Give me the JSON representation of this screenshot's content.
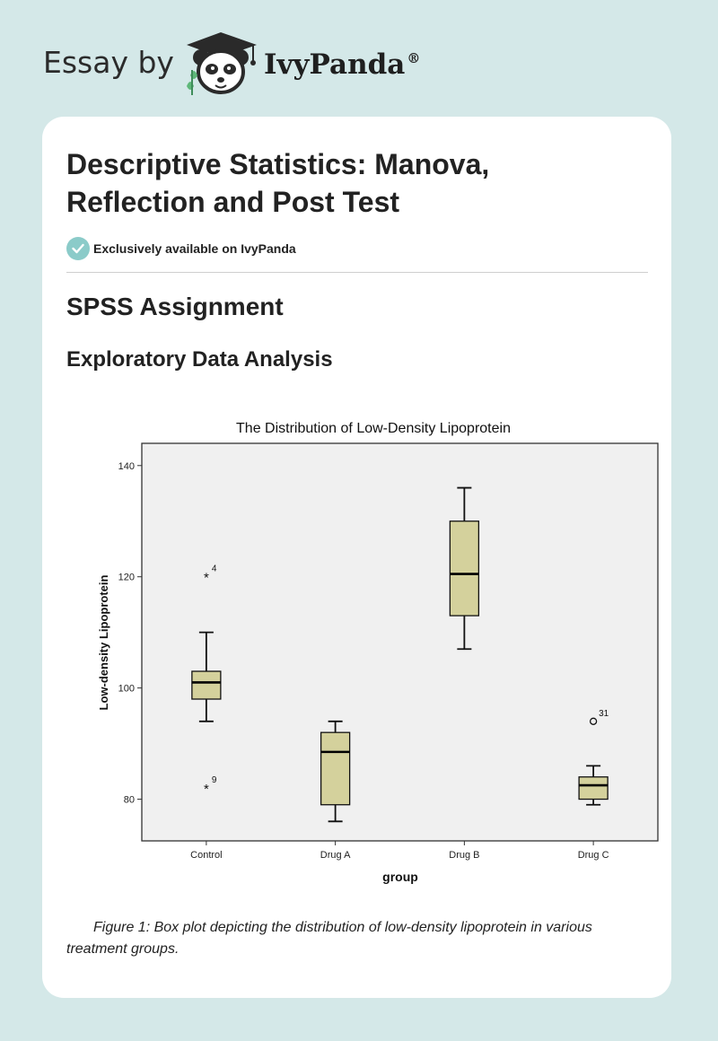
{
  "brand": {
    "prefix": "Essay by",
    "name": "IvyPanda",
    "registered": "®",
    "mascot_icon": "panda-graduation-cap-icon"
  },
  "article": {
    "title": "Descriptive Statistics: Manova, Reflection and Post Test",
    "exclusive_badge": {
      "icon": "check-circle-icon",
      "text": "Exclusively available on IvyPanda",
      "color": "#8bcbc9"
    },
    "section_title": "SPSS Assignment",
    "subsection_title": "Exploratory Data Analysis",
    "figure_caption": "Figure 1: Box plot depicting the distribution of low-density lipoprotein in various treatment groups."
  },
  "colors": {
    "page_background": "#d4e8e8",
    "card_background": "#ffffff",
    "plot_background": "#f0f0f0",
    "box_fill": "#d4d19c"
  },
  "chart_data": {
    "type": "box",
    "title": "The Distribution of Low-Density Lipoprotein",
    "xlabel": "group",
    "ylabel": "Low-density Lipoprotein",
    "ylim": [
      72.5,
      144
    ],
    "yticks": [
      80,
      100,
      120,
      140
    ],
    "grid": false,
    "categories": [
      "Control",
      "Drug A",
      "Drug  B",
      "Drug C"
    ],
    "boxes": [
      {
        "category": "Control",
        "min": 94,
        "q1": 98,
        "median": 101,
        "q3": 103,
        "max": 110,
        "outliers": [
          {
            "value": 120,
            "label": "4",
            "marker": "*"
          },
          {
            "value": 82,
            "label": "9",
            "marker": "*"
          }
        ]
      },
      {
        "category": "Drug A",
        "min": 76,
        "q1": 79,
        "median": 88.5,
        "q3": 92,
        "max": 94,
        "outliers": []
      },
      {
        "category": "Drug  B",
        "min": 107,
        "q1": 113,
        "median": 120.5,
        "q3": 130,
        "max": 136,
        "outliers": []
      },
      {
        "category": "Drug C",
        "min": 79,
        "q1": 80,
        "median": 82.5,
        "q3": 84,
        "max": 86,
        "outliers": [
          {
            "value": 94,
            "label": "31",
            "marker": "o"
          }
        ]
      }
    ]
  }
}
